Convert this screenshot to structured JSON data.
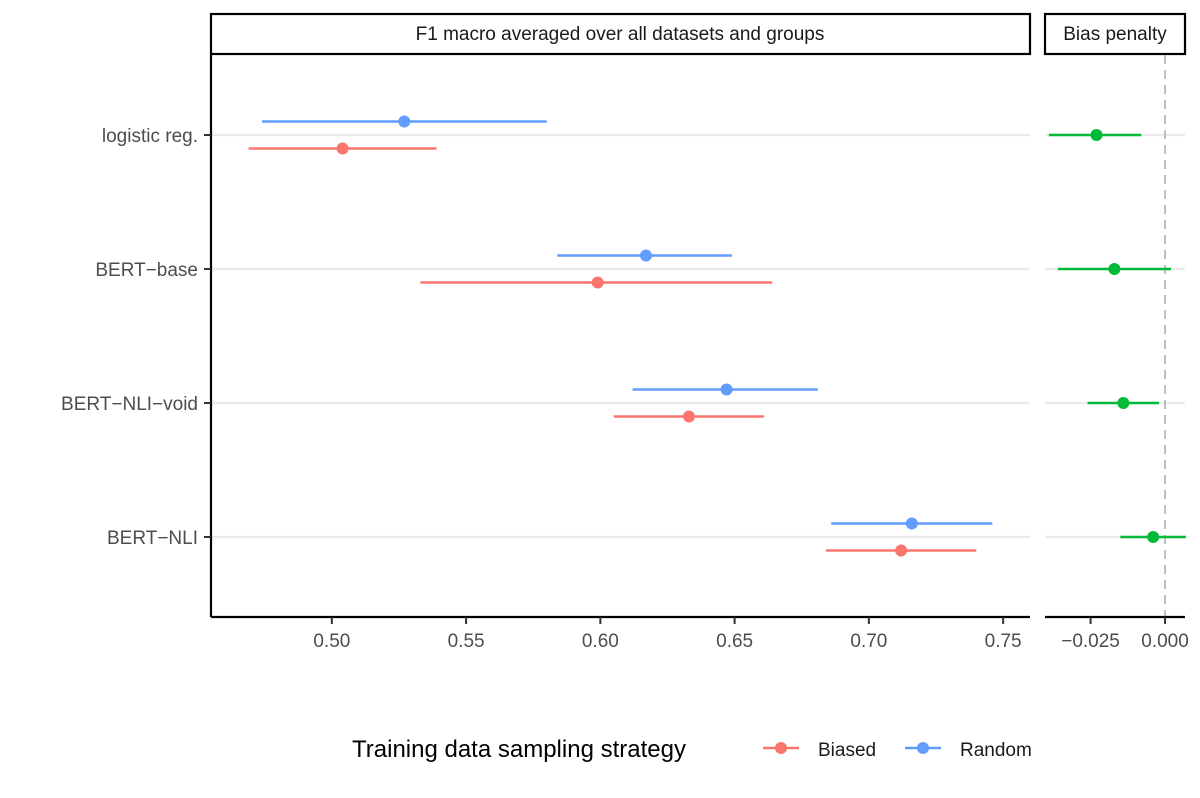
{
  "chart_data": {
    "type": "forest",
    "models": [
      "logistic reg.",
      "BERT−base",
      "BERT−NLI−void",
      "BERT−NLI"
    ],
    "colors": {
      "Biased": "#f8766d",
      "Random": "#619cff",
      "penalty": "#00ba38",
      "grid": "#ebebeb",
      "ref_line": "#bebebe"
    },
    "left_panel": {
      "title": "F1 macro averaged over all datasets and groups",
      "xlim": [
        0.455,
        0.76
      ],
      "ticks": [
        0.5,
        0.55,
        0.6,
        0.65,
        0.7,
        0.75
      ],
      "tick_labels": [
        "0.50",
        "0.55",
        "0.60",
        "0.65",
        "0.70",
        "0.75"
      ],
      "series": [
        {
          "name": "Random",
          "points": [
            {
              "model": "logistic reg.",
              "est": 0.527,
              "lo": 0.474,
              "hi": 0.58
            },
            {
              "model": "BERT−base",
              "est": 0.617,
              "lo": 0.584,
              "hi": 0.649
            },
            {
              "model": "BERT−NLI−void",
              "est": 0.647,
              "lo": 0.612,
              "hi": 0.681
            },
            {
              "model": "BERT−NLI",
              "est": 0.716,
              "lo": 0.686,
              "hi": 0.746
            }
          ]
        },
        {
          "name": "Biased",
          "points": [
            {
              "model": "logistic reg.",
              "est": 0.504,
              "lo": 0.469,
              "hi": 0.539
            },
            {
              "model": "BERT−base",
              "est": 0.599,
              "lo": 0.533,
              "hi": 0.664
            },
            {
              "model": "BERT−NLI−void",
              "est": 0.633,
              "lo": 0.605,
              "hi": 0.661
            },
            {
              "model": "BERT−NLI",
              "est": 0.712,
              "lo": 0.684,
              "hi": 0.74
            }
          ]
        }
      ]
    },
    "right_panel": {
      "title": "Bias penalty",
      "xlim": [
        -0.0403,
        0.0067
      ],
      "ticks": [
        -0.025,
        0.0
      ],
      "tick_labels": [
        "−0.025",
        "0.000"
      ],
      "ref_line": 0.0,
      "points": [
        {
          "model": "logistic reg.",
          "est": -0.023,
          "lo": -0.039,
          "hi": -0.008
        },
        {
          "model": "BERT−base",
          "est": -0.017,
          "lo": -0.036,
          "hi": 0.002
        },
        {
          "model": "BERT−NLI−void",
          "est": -0.014,
          "lo": -0.026,
          "hi": -0.002
        },
        {
          "model": "BERT−NLI",
          "est": -0.004,
          "lo": -0.015,
          "hi": 0.007
        }
      ]
    },
    "legend": {
      "title": "Training data sampling strategy",
      "entries": [
        "Biased",
        "Random"
      ],
      "position": "bottom"
    }
  }
}
